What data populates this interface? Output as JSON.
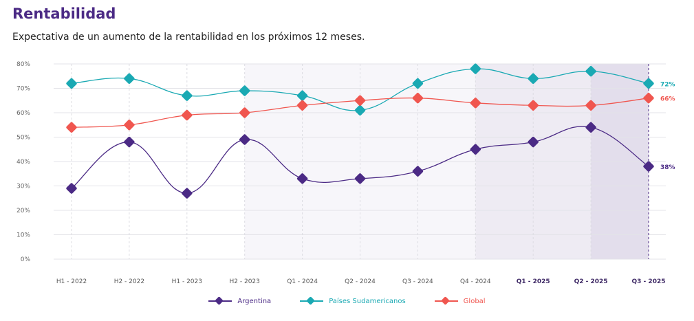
{
  "title": "Rentabilidad",
  "subtitle": "Expectativa de un aumento de la rentabilidad en los próximos 12 meses.",
  "chart_data": {
    "type": "line",
    "categories": [
      "H1 - 2022",
      "H2 - 2022",
      "H1 - 2023",
      "H2 - 2023",
      "Q1 - 2024",
      "Q2 - 2024",
      "Q3 - 2024",
      "Q4 - 2024",
      "Q1 - 2025",
      "Q2 - 2025",
      "Q3 - 2025"
    ],
    "bold_categories": [
      "Q1 - 2025",
      "Q2 - 2025",
      "Q3 - 2025"
    ],
    "ylim": [
      0,
      80
    ],
    "yticks": [
      "0%",
      "10%",
      "20%",
      "30%",
      "40%",
      "50%",
      "60%",
      "70%",
      "80%"
    ],
    "grid": true,
    "legend_position": "bottom",
    "series": [
      {
        "name": "Argentina",
        "color": "#4b2a85",
        "values": [
          29,
          48,
          27,
          49,
          33,
          33,
          36,
          45,
          48,
          54,
          38
        ],
        "end_label": "38%"
      },
      {
        "name": "Países Sudamericanos",
        "color": "#1aa9b3",
        "values": [
          72,
          74,
          67,
          69,
          67,
          61,
          72,
          78,
          74,
          77,
          72
        ],
        "end_label": "72%"
      },
      {
        "name": "Global",
        "color": "#f0564f",
        "values": [
          54,
          55,
          59,
          60,
          63,
          65,
          66,
          64,
          63,
          63,
          66
        ],
        "end_label": "66%"
      }
    ]
  }
}
